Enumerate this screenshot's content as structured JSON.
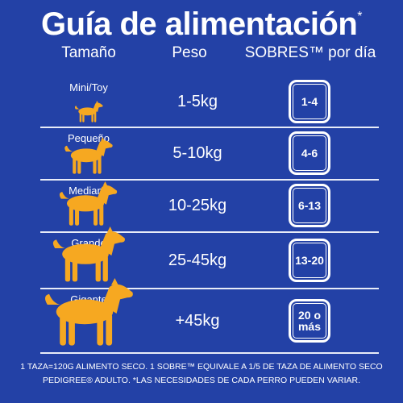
{
  "header": {
    "title": "Guía de alimentación",
    "title_mark": "*"
  },
  "columns": [
    "Tamaño",
    "Peso",
    "SOBRES™ por día"
  ],
  "rows": [
    {
      "size": "Mini/Toy",
      "weight": "1-5kg",
      "pouches": "1-4"
    },
    {
      "size": "Pequeño",
      "weight": "5-10kg",
      "pouches": "4-6"
    },
    {
      "size": "Mediano",
      "weight": "10-25kg",
      "pouches": "6-13"
    },
    {
      "size": "Grande",
      "weight": "25-45kg",
      "pouches": "13-20"
    },
    {
      "size": "Gigante",
      "weight": "+45kg",
      "pouches": "20 o más"
    }
  ],
  "footnote": "1 TAZA=120G ALIMENTO SECO. 1 SOBRE™ EQUIVALE A 1/5 DE TAZA DE ALIMENTO SECO PEDIGREE® ADULTO. *LAS NECESIDADES DE CADA PERRO PUEDEN VARIAR."
}
